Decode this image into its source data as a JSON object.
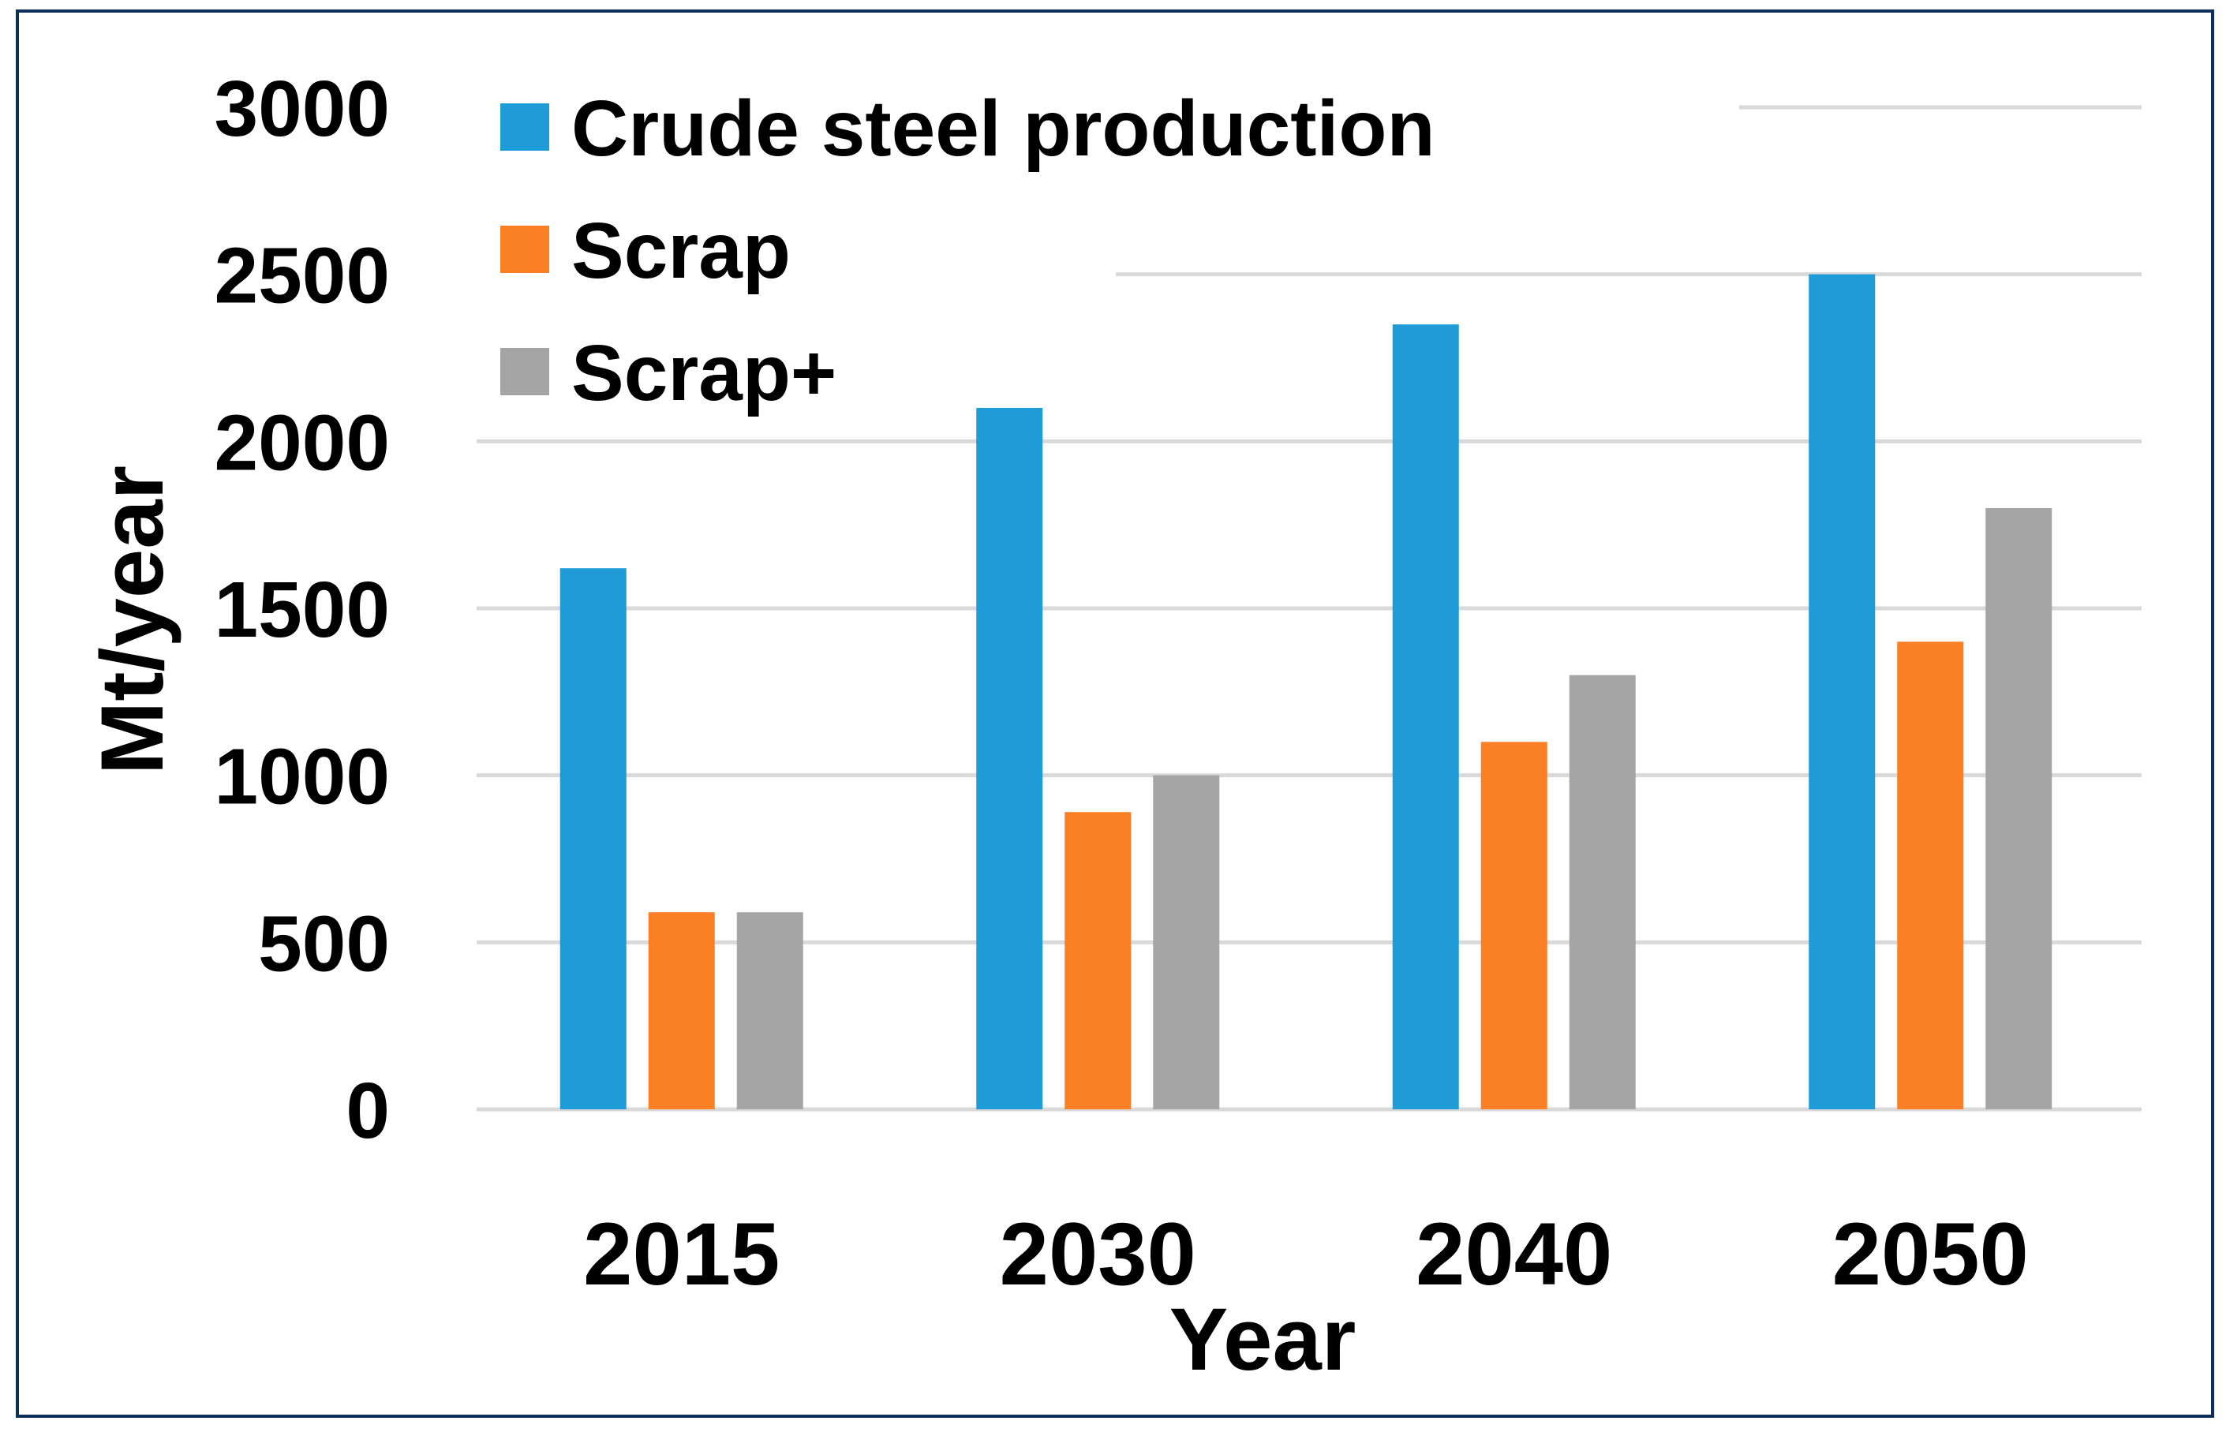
{
  "chart_data": {
    "type": "bar",
    "title": "",
    "xlabel": "Year",
    "ylabel": "Mt/year",
    "categories": [
      "2015",
      "2030",
      "2040",
      "2050"
    ],
    "series": [
      {
        "name": "Crude steel production",
        "color": "#1f9bd7",
        "values": [
          1620,
          2100,
          2350,
          2500
        ]
      },
      {
        "name": "Scrap",
        "color": "#fb7f25",
        "values": [
          590,
          890,
          1100,
          1400
        ]
      },
      {
        "name": "Scrap+",
        "color": "#a5a5a5",
        "values": [
          590,
          1000,
          1300,
          1800
        ]
      }
    ],
    "ylim": [
      0,
      3000
    ],
    "yticks": [
      0,
      500,
      1000,
      1500,
      2000,
      2500,
      3000
    ],
    "grid": true,
    "legend_position": "top-left",
    "gridline_color": "#d9d9d9"
  }
}
